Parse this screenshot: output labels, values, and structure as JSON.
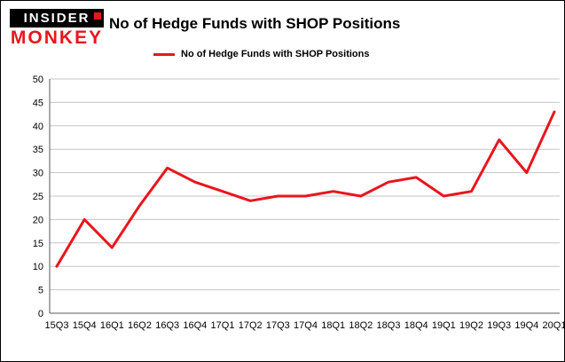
{
  "logo": {
    "line1": "INSIDER",
    "line2": "MONKEY"
  },
  "header": {
    "title": "No of Hedge Funds with SHOP Positions"
  },
  "legend": {
    "label": "No of Hedge Funds with SHOP Positions"
  },
  "colors": {
    "line": "#e8161d",
    "logo_red": "#e8161d",
    "grid": "#c6c6c6",
    "axis": "#595959",
    "text": "#000000",
    "background": "#ffffff"
  },
  "chart_data": {
    "type": "line",
    "title": "No of Hedge Funds with SHOP Positions",
    "legend": "No of Hedge Funds with SHOP Positions",
    "categories": [
      "15Q3",
      "15Q4",
      "16Q1",
      "16Q2",
      "16Q3",
      "16Q4",
      "17Q1",
      "17Q2",
      "17Q3",
      "17Q4",
      "18Q1",
      "18Q2",
      "18Q3",
      "18Q4",
      "19Q1",
      "19Q2",
      "19Q3",
      "19Q4",
      "20Q1"
    ],
    "values": [
      10,
      20,
      14,
      23,
      31,
      28,
      26,
      24,
      25,
      25,
      26,
      25,
      28,
      29,
      25,
      26,
      37,
      30,
      43
    ],
    "xlabel": "",
    "ylabel": "",
    "ylim": [
      0,
      50
    ],
    "ytick_step": 5,
    "grid": true,
    "legend_position": "top-left",
    "line_color": "#e8161d",
    "line_width": 3
  }
}
